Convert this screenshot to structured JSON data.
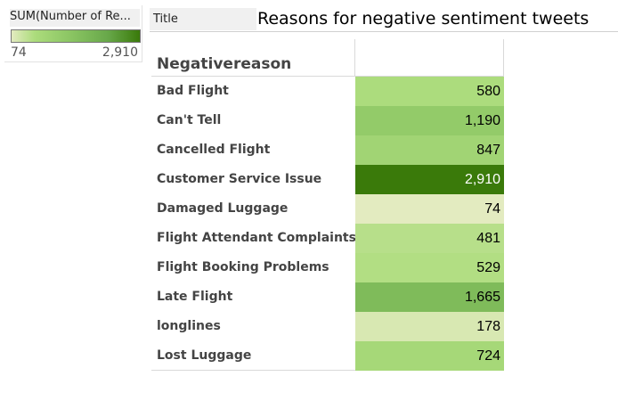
{
  "legend": {
    "title": "SUM(Number of Re...",
    "min_label": "74",
    "max_label": "2,910",
    "color_low": "#e3ebc0",
    "color_high": "#3a7a0a"
  },
  "title_bar": {
    "tag": "Title",
    "title": "Reasons for negative sentiment tweets"
  },
  "chart_data": {
    "type": "heatmap",
    "title": "Reasons for negative sentiment tweets",
    "row_header": "Negativereason",
    "measure": "SUM(Number of Records)",
    "color_range": [
      74,
      2910
    ],
    "colors": {
      "low": "#e3ebc0",
      "high": "#3a7a0a"
    },
    "rows": [
      {
        "label": "Bad Flight",
        "value": 580,
        "display": "580"
      },
      {
        "label": "Can't Tell",
        "value": 1190,
        "display": "1,190"
      },
      {
        "label": "Cancelled Flight",
        "value": 847,
        "display": "847"
      },
      {
        "label": "Customer Service Issue",
        "value": 2910,
        "display": "2,910"
      },
      {
        "label": "Damaged Luggage",
        "value": 74,
        "display": "74"
      },
      {
        "label": "Flight Attendant Complaints",
        "value": 481,
        "display": "481"
      },
      {
        "label": "Flight Booking Problems",
        "value": 529,
        "display": "529"
      },
      {
        "label": "Late Flight",
        "value": 1665,
        "display": "1,665"
      },
      {
        "label": "longlines",
        "value": 178,
        "display": "178"
      },
      {
        "label": "Lost Luggage",
        "value": 724,
        "display": "724"
      }
    ]
  }
}
